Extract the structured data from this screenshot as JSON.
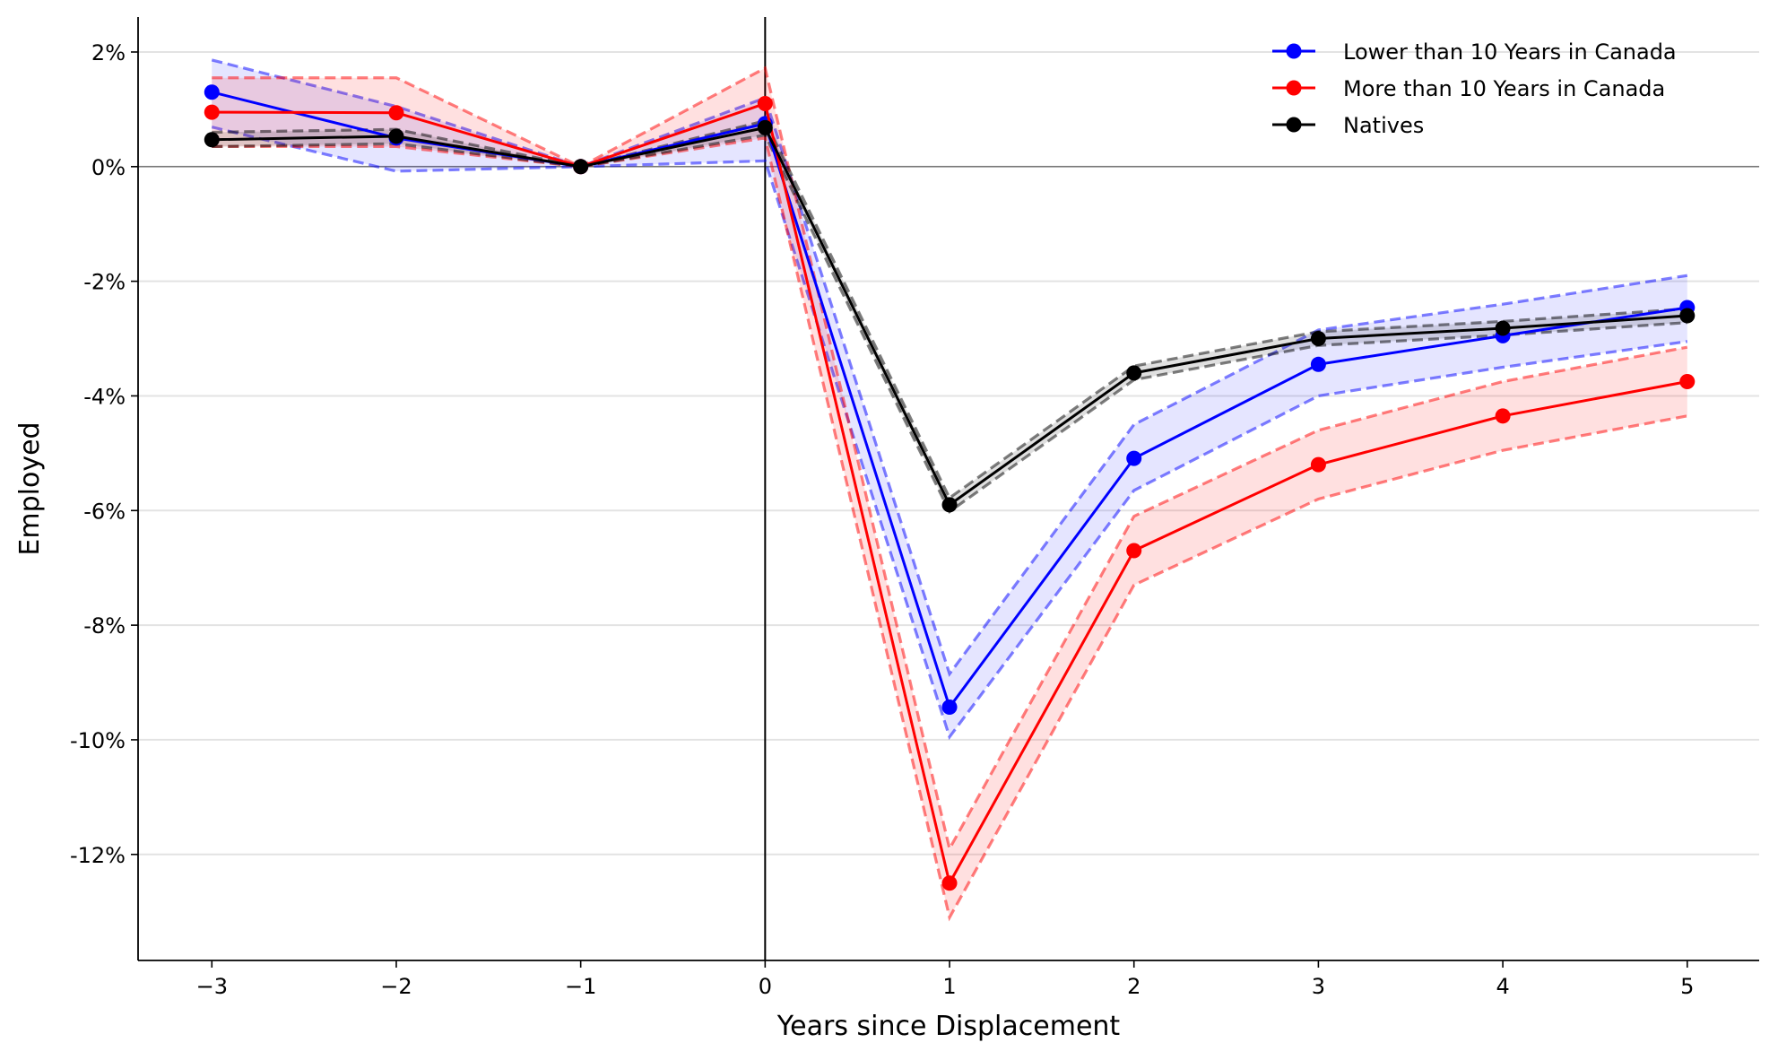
{
  "chart_data": {
    "type": "line",
    "title": "",
    "xlabel": "Years since Displacement",
    "ylabel": "Employed",
    "xlim": [
      -3.4,
      5.39
    ],
    "ylim": [
      -13.85,
      2.61
    ],
    "x": [
      -3,
      -2,
      -1,
      0,
      1,
      2,
      3,
      4,
      5
    ],
    "x_tick_labels": [
      "−3",
      "−2",
      "−1",
      "0",
      "1",
      "2",
      "3",
      "4",
      "5"
    ],
    "y_ticks": [
      2,
      0,
      -2,
      -4,
      -6,
      -8,
      -10,
      -12
    ],
    "y_tick_labels": [
      "2%",
      "0%",
      "-2%",
      "-4%",
      "-6%",
      "-8%",
      "-10%",
      "-12%"
    ],
    "grid": "horizontal",
    "reference_lines": {
      "vertical_x": 0,
      "horizontal_y": 0
    },
    "legend_placement": "top-right",
    "series": [
      {
        "name": "Lower than 10 Years in Canada",
        "color": "#0000ff",
        "values": [
          1.3,
          0.5,
          0,
          0.75,
          -9.43,
          -5.09,
          -3.45,
          -2.95,
          -2.46
        ],
        "ci_lower": [
          0.69,
          -0.08,
          0,
          0.1,
          -9.95,
          -5.65,
          -4.0,
          -3.5,
          -3.05
        ],
        "ci_upper": [
          1.86,
          1.05,
          0,
          1.2,
          -8.85,
          -4.5,
          -2.85,
          -2.4,
          -1.9
        ]
      },
      {
        "name": "More than 10 Years in Canada",
        "color": "#ff0000",
        "values": [
          0.95,
          0.94,
          0,
          1.1,
          -12.5,
          -6.7,
          -5.2,
          -4.35,
          -3.75
        ],
        "ci_lower": [
          0.35,
          0.35,
          0,
          0.5,
          -13.1,
          -7.3,
          -5.8,
          -4.95,
          -4.35
        ],
        "ci_upper": [
          1.55,
          1.55,
          0,
          1.72,
          -11.9,
          -6.1,
          -4.6,
          -3.75,
          -3.15
        ]
      },
      {
        "name": "Natives",
        "color": "#000000",
        "values": [
          0.47,
          0.53,
          0,
          0.68,
          -5.9,
          -3.6,
          -3.0,
          -2.82,
          -2.6
        ],
        "ci_lower": [
          0.35,
          0.4,
          0,
          0.55,
          -6.02,
          -3.72,
          -3.12,
          -2.94,
          -2.72
        ],
        "ci_upper": [
          0.6,
          0.65,
          0,
          0.8,
          -5.78,
          -3.48,
          -2.88,
          -2.7,
          -2.48
        ]
      }
    ]
  }
}
